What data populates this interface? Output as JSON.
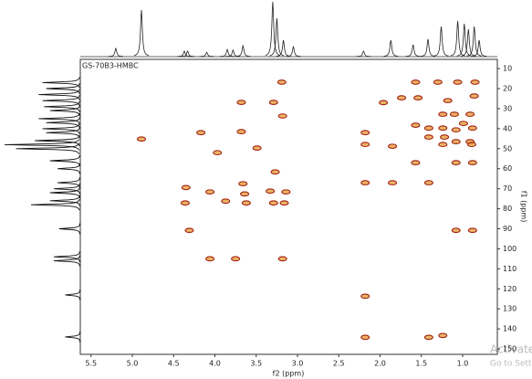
{
  "chart_data": {
    "type": "scatter",
    "title": "GS-70B3-HMBC",
    "x_label": "f2 (ppm)",
    "y_label": "f1 (ppm)",
    "xlim": [
      5.63,
      0.58
    ],
    "xticks": [
      5.5,
      {
        "value": 5,
        "label": "5.0"
      },
      4.5,
      {
        "value": 4,
        "label": "4.0"
      },
      3.5,
      {
        "value": 3,
        "label": "3.0"
      },
      2.5,
      {
        "value": 2,
        "label": "2.0"
      },
      1.5,
      {
        "value": 1,
        "label": "1.0"
      }
    ],
    "ylim": [
      5.4,
      152.7
    ],
    "yticks": [
      10,
      20,
      30,
      40,
      50,
      60,
      70,
      80,
      90,
      100,
      110,
      120,
      130,
      140,
      150
    ],
    "color": "#e8a040",
    "edge_color": "#a02010",
    "x": [
      4.89,
      3.19,
      3.68,
      3.29,
      3.18,
      3.68,
      4.17,
      3.49,
      3.97,
      3.27,
      4.35,
      4.06,
      3.66,
      3.64,
      3.33,
      3.14,
      3.29,
      3.16,
      4.36,
      3.87,
      3.62,
      4.31,
      4.06,
      3.75,
      3.18,
      2.18,
      2.18,
      1.57,
      1.3,
      1.06,
      0.85,
      1.74,
      1.54,
      1.18,
      0.86,
      1.96,
      1.24,
      1.1,
      0.91,
      0.99,
      1.57,
      1.41,
      1.24,
      1.08,
      0.88,
      2.18,
      1.41,
      1.22,
      1.08,
      0.91,
      2.18,
      1.85,
      1.24,
      0.89,
      1.08,
      0.88,
      2.18,
      1.85,
      1.41,
      1.08,
      0.88,
      1.41,
      1.24,
      1.57
    ],
    "y": [
      45.2,
      16.8,
      26.9,
      26.9,
      33.7,
      41.5,
      42.0,
      49.7,
      52.0,
      61.6,
      69.4,
      71.6,
      67.5,
      72.6,
      71.2,
      71.6,
      77.1,
      77.1,
      77.1,
      76.2,
      77.1,
      90.8,
      105.0,
      105.0,
      105.0,
      123.7,
      144.2,
      16.8,
      16.8,
      16.8,
      16.8,
      24.6,
      24.6,
      26.0,
      23.7,
      27.0,
      32.8,
      32.8,
      32.8,
      37.4,
      38.3,
      39.7,
      39.7,
      40.6,
      39.7,
      42.0,
      44.2,
      44.2,
      46.5,
      46.5,
      47.9,
      48.8,
      47.9,
      47.9,
      57.0,
      57.0,
      67.0,
      67.0,
      67.0,
      90.8,
      90.8,
      144.2,
      143.3,
      57.0
    ],
    "top_projection": {
      "x": [
        5.2,
        4.89,
        4.37,
        4.33,
        4.1,
        3.85,
        3.78,
        3.66,
        3.3,
        3.25,
        3.17,
        3.05,
        2.2,
        1.87,
        1.6,
        1.42,
        1.26,
        1.06,
        0.98,
        0.93,
        0.86,
        0.8
      ],
      "values": [
        15,
        85,
        10,
        10,
        8,
        13,
        12,
        20,
        100,
        70,
        30,
        18,
        10,
        30,
        22,
        32,
        55,
        65,
        60,
        50,
        55,
        30
      ]
    },
    "left_projection": {
      "y": [
        17,
        20,
        23,
        26,
        29,
        31,
        35,
        37,
        40,
        42,
        46,
        48,
        50,
        56,
        60,
        67,
        70,
        72,
        76,
        78,
        90,
        104,
        106,
        123,
        144
      ],
      "values": [
        50,
        45,
        55,
        50,
        48,
        40,
        55,
        45,
        50,
        45,
        60,
        100,
        85,
        40,
        30,
        30,
        35,
        40,
        40,
        65,
        28,
        35,
        35,
        20,
        20
      ]
    }
  },
  "overlay_text": [
    "Activate",
    "Go to Setti"
  ]
}
